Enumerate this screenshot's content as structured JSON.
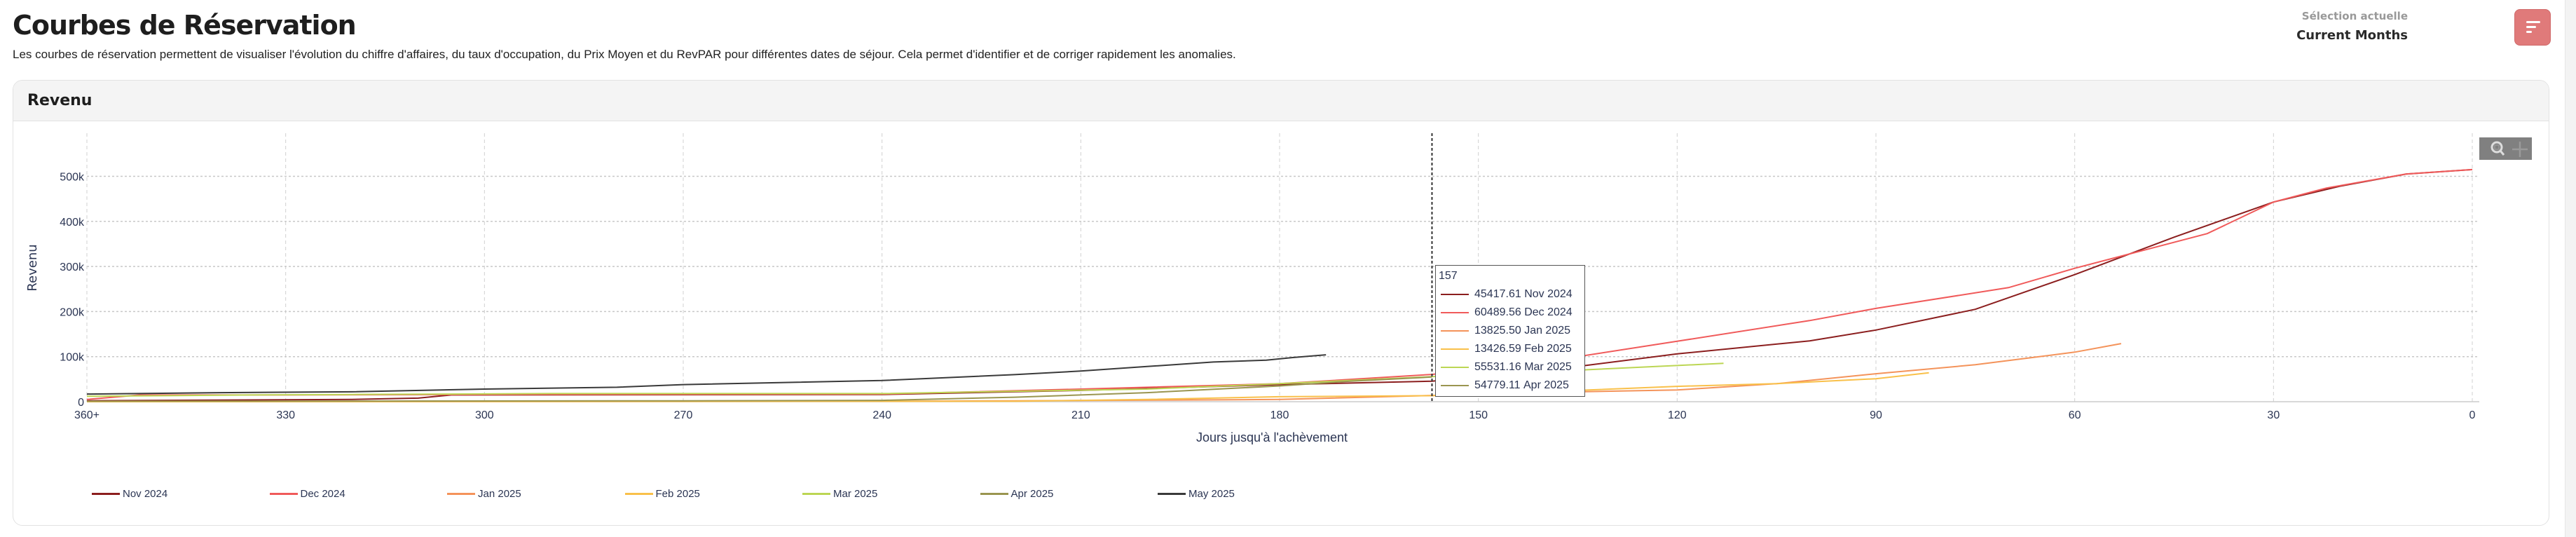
{
  "header": {
    "title": "Courbes de Réservation",
    "description": "Les courbes de réservation permettent de visualiser l'évolution du chiffre d'affaires, du taux d'occupation, du Prix Moyen et du RevPAR pour différentes dates de séjour. Cela permet d'identifier et de corriger rapidement les anomalies.",
    "selection_label": "Sélection actuelle",
    "selection_value": "Current Months",
    "filter_icon": "filter-lines-icon",
    "accent": "#e07a7a"
  },
  "card": {
    "title": "Revenu"
  },
  "toolbox": {
    "icons": [
      "zoom-icon",
      "pan-icon"
    ]
  },
  "tooltip": {
    "day": "157",
    "rows": [
      {
        "value": "45417.61",
        "series": "Nov 2024"
      },
      {
        "value": "60489.56",
        "series": "Dec 2024"
      },
      {
        "value": "13825.50",
        "series": "Jan 2025"
      },
      {
        "value": "13426.59",
        "series": "Feb 2025"
      },
      {
        "value": "55531.16",
        "series": "Mar 2025"
      },
      {
        "value": "54779.11",
        "series": "Apr 2025"
      }
    ]
  },
  "chart_data": {
    "type": "line",
    "title": "",
    "xlabel": "Jours jusqu'à l'achèvement",
    "ylabel": "Revenu",
    "xlim": [
      360,
      0
    ],
    "x_reversed": true,
    "ylim": [
      0,
      560000
    ],
    "xticks": [
      "360+",
      "330",
      "300",
      "270",
      "240",
      "210",
      "180",
      "150",
      "120",
      "90",
      "60",
      "30",
      "0"
    ],
    "xtick_values": [
      360,
      330,
      300,
      270,
      240,
      210,
      180,
      150,
      120,
      90,
      60,
      30,
      0
    ],
    "yticks": [
      "0",
      "100k",
      "200k",
      "300k",
      "400k",
      "500k"
    ],
    "ytick_values": [
      0,
      100000,
      200000,
      300000,
      400000,
      500000
    ],
    "grid": true,
    "legend_position": "bottom",
    "crosshair_x": 157,
    "series": [
      {
        "name": "Nov 2024",
        "color": "#8b1e1e",
        "points": [
          [
            360,
            2000
          ],
          [
            320,
            5000
          ],
          [
            310,
            8000
          ],
          [
            305,
            15000
          ],
          [
            240,
            16000
          ],
          [
            210,
            25000
          ],
          [
            180,
            38000
          ],
          [
            157,
            45418
          ],
          [
            140,
            70000
          ],
          [
            135,
            78000
          ],
          [
            120,
            106000
          ],
          [
            100,
            135000
          ],
          [
            90,
            159000
          ],
          [
            75,
            205000
          ],
          [
            60,
            282000
          ],
          [
            45,
            365000
          ],
          [
            30,
            443000
          ],
          [
            20,
            478000
          ],
          [
            10,
            505000
          ],
          [
            0,
            515000
          ]
        ]
      },
      {
        "name": "Dec 2024",
        "color": "#f05a5a",
        "points": [
          [
            360,
            5000
          ],
          [
            352,
            15000
          ],
          [
            330,
            15000
          ],
          [
            300,
            16000
          ],
          [
            240,
            17000
          ],
          [
            210,
            28000
          ],
          [
            180,
            40000
          ],
          [
            157,
            60490
          ],
          [
            135,
            100000
          ],
          [
            120,
            134000
          ],
          [
            100,
            180000
          ],
          [
            90,
            207000
          ],
          [
            70,
            253000
          ],
          [
            60,
            296000
          ],
          [
            40,
            373000
          ],
          [
            30,
            443000
          ],
          [
            22,
            474000
          ],
          [
            10,
            505000
          ],
          [
            0,
            515000
          ]
        ]
      },
      {
        "name": "Jan 2025",
        "color": "#f4935a",
        "points": [
          [
            360,
            0
          ],
          [
            240,
            1000
          ],
          [
            220,
            2000
          ],
          [
            190,
            4000
          ],
          [
            180,
            5000
          ],
          [
            157,
            13826
          ],
          [
            135,
            22000
          ],
          [
            120,
            26000
          ],
          [
            105,
            40000
          ],
          [
            90,
            62000
          ],
          [
            75,
            82000
          ],
          [
            60,
            110000
          ],
          [
            53,
            129000
          ]
        ]
      },
      {
        "name": "Feb 2025",
        "color": "#f9c04a",
        "points": [
          [
            360,
            0
          ],
          [
            220,
            1000
          ],
          [
            200,
            5000
          ],
          [
            180,
            11000
          ],
          [
            157,
            13427
          ],
          [
            135,
            25000
          ],
          [
            120,
            34000
          ],
          [
            105,
            40000
          ],
          [
            90,
            51000
          ],
          [
            82,
            64000
          ]
        ]
      },
      {
        "name": "Mar 2025",
        "color": "#bcd654",
        "points": [
          [
            360,
            12000
          ],
          [
            335,
            15000
          ],
          [
            320,
            16000
          ],
          [
            290,
            18000
          ],
          [
            240,
            18000
          ],
          [
            200,
            28000
          ],
          [
            180,
            40000
          ],
          [
            157,
            55531
          ],
          [
            135,
            70000
          ],
          [
            113,
            85000
          ]
        ]
      },
      {
        "name": "Apr 2025",
        "color": "#9a9550",
        "points": [
          [
            360,
            1000
          ],
          [
            270,
            2000
          ],
          [
            240,
            3000
          ],
          [
            220,
            10000
          ],
          [
            200,
            20000
          ],
          [
            180,
            35000
          ],
          [
            170,
            45000
          ],
          [
            157,
            54779
          ]
        ]
      },
      {
        "name": "May 2025",
        "color": "#3a3a3a",
        "points": [
          [
            360,
            17000
          ],
          [
            340,
            20000
          ],
          [
            320,
            22000
          ],
          [
            300,
            28000
          ],
          [
            280,
            32000
          ],
          [
            270,
            38000
          ],
          [
            240,
            47000
          ],
          [
            220,
            60000
          ],
          [
            210,
            68000
          ],
          [
            200,
            78000
          ],
          [
            190,
            88000
          ],
          [
            182,
            92000
          ],
          [
            178,
            98000
          ],
          [
            173,
            104000
          ]
        ]
      }
    ]
  }
}
